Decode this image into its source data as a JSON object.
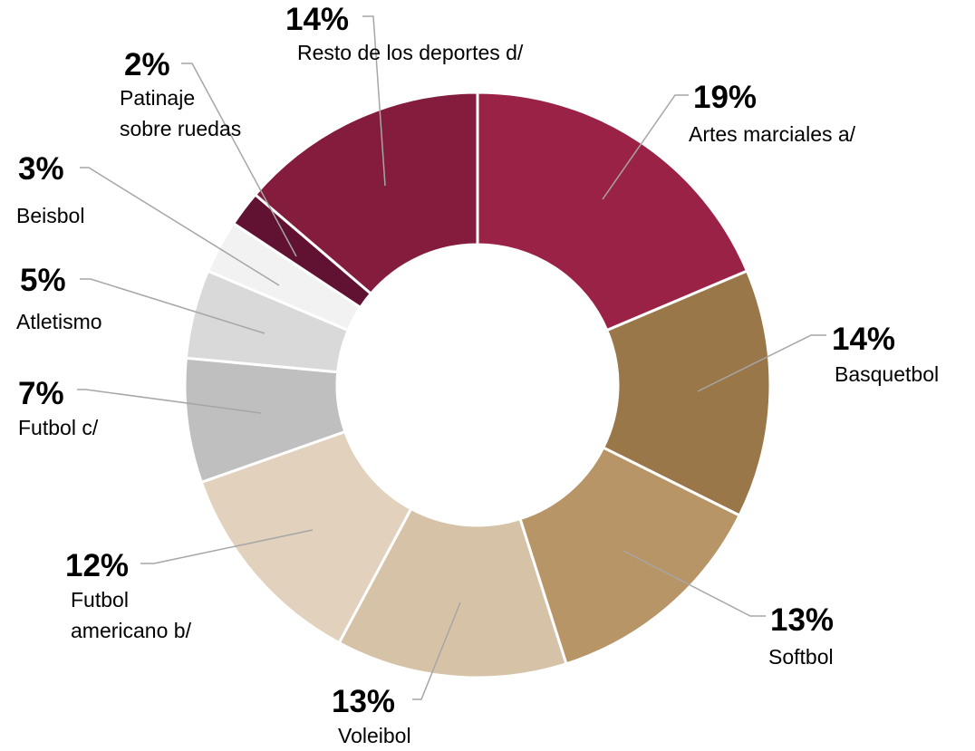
{
  "chart_data": {
    "type": "donut",
    "categories": [
      "Artes marciales a/",
      "Basquetbol",
      "Softbol",
      "Voleibol",
      "Futbol\namericano b/",
      "Futbol c/",
      "Atletismo",
      "Beisbol",
      "Patinaje\nsobre ruedas",
      "Resto de los deportes d/"
    ],
    "values": [
      19,
      14,
      13,
      13,
      12,
      7,
      5,
      3,
      2,
      14
    ],
    "value_labels": [
      "19%",
      "14%",
      "13%",
      "13%",
      "12%",
      "7%",
      "5%",
      "3%",
      "2%",
      "14%"
    ],
    "colors": [
      "#9b2247",
      "#9a7749",
      "#b89566",
      "#d6c3a7",
      "#e1d1bd",
      "#bfbfbf",
      "#d9d9d9",
      "#f2f2f2",
      "#611232",
      "#841c3e"
    ]
  }
}
